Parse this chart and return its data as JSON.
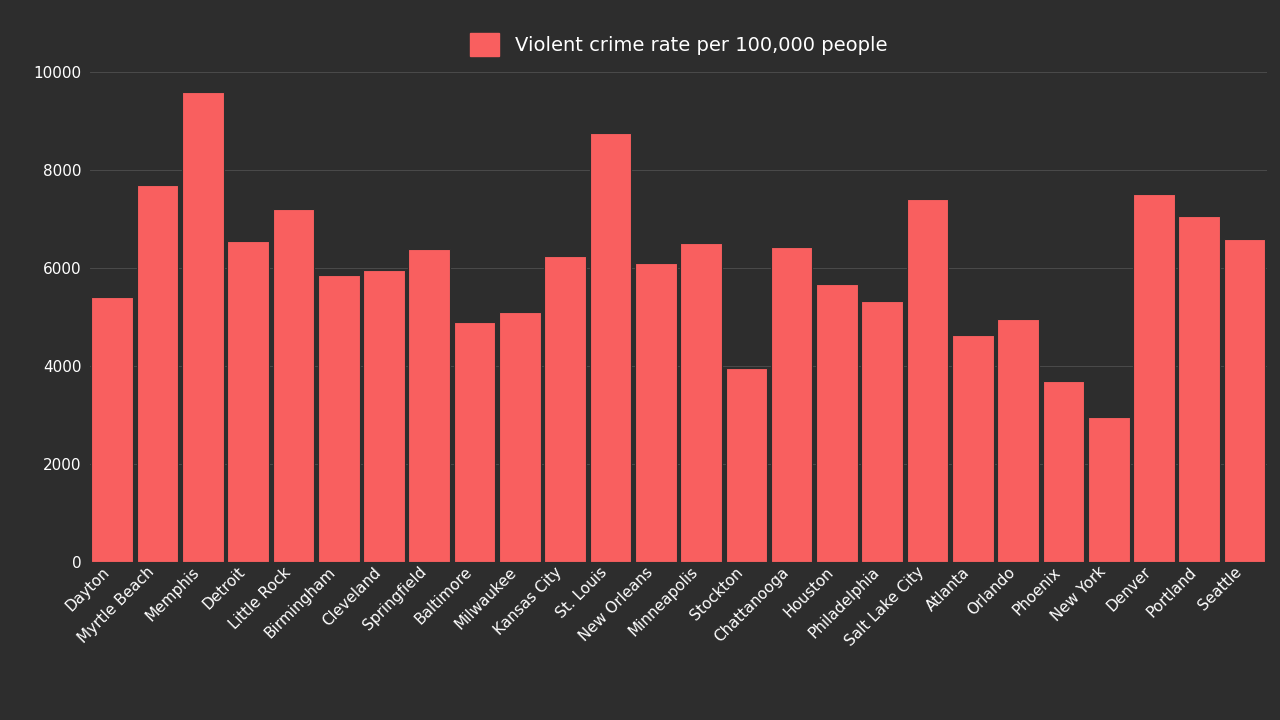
{
  "categories": [
    "Dayton",
    "Myrtle Beach",
    "Memphis",
    "Detroit",
    "Little Rock",
    "Birmingham",
    "Cleveland",
    "Springfield",
    "Baltimore",
    "Milwaukee",
    "Kansas City",
    "St. Louis",
    "New Orleans",
    "Minneapolis",
    "Stockton",
    "Chattanooga",
    "Houston",
    "Philadelphia",
    "Salt Lake City",
    "Atlanta",
    "Orlando",
    "Phoenix",
    "New York",
    "Denver",
    "Portland",
    "Seattle"
  ],
  "values": [
    5400,
    7700,
    9600,
    6550,
    7200,
    5850,
    5950,
    6380,
    4900,
    5100,
    6250,
    8750,
    6100,
    6500,
    3950,
    6420,
    5680,
    5330,
    7400,
    4620,
    4950,
    3680,
    2950,
    7500,
    7050,
    6580
  ],
  "bar_color": "#f95f5f",
  "background_color": "#2d2d2d",
  "text_color": "#ffffff",
  "grid_color": "#4a4a4a",
  "legend_label": "Violent crime rate per 100,000 people",
  "ylim": [
    0,
    10000
  ],
  "yticks": [
    0,
    2000,
    4000,
    6000,
    8000,
    10000
  ],
  "tick_fontsize": 11,
  "legend_fontsize": 14,
  "bar_width": 0.92
}
